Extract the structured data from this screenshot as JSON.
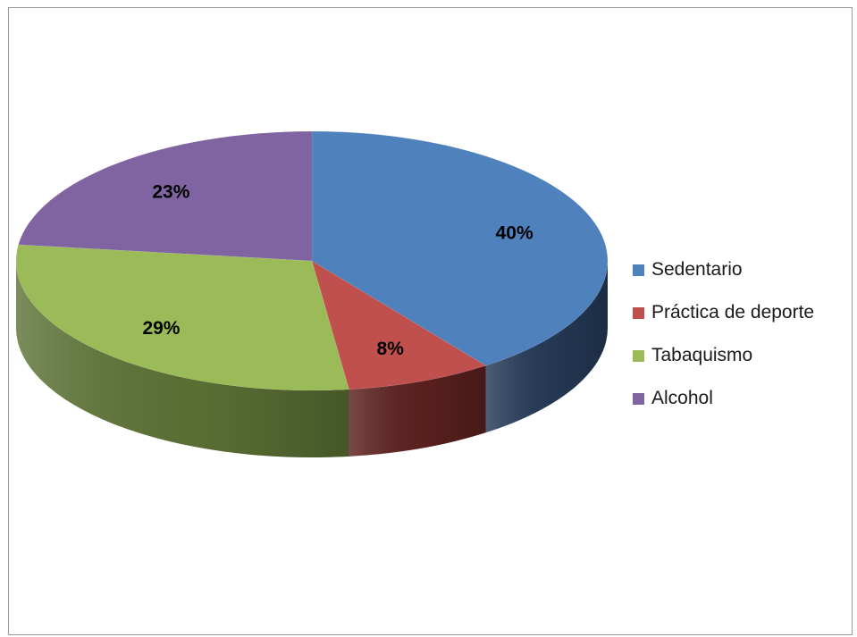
{
  "chart_data": {
    "type": "pie",
    "title": "",
    "categories": [
      "Sedentario",
      "Práctica de deporte",
      "Tabaquismo",
      "Alcohol"
    ],
    "values": [
      40,
      8,
      29,
      23
    ],
    "labels": [
      "40%",
      "8%",
      "29%",
      "23%"
    ],
    "colors": [
      "#4F81BD",
      "#C0504D",
      "#9BBB59",
      "#8064A2"
    ],
    "side_colors": [
      "#263B59",
      "#5E211F",
      "#5E7436",
      "#4D3C62"
    ],
    "legend_position": "right",
    "three_d": true
  }
}
